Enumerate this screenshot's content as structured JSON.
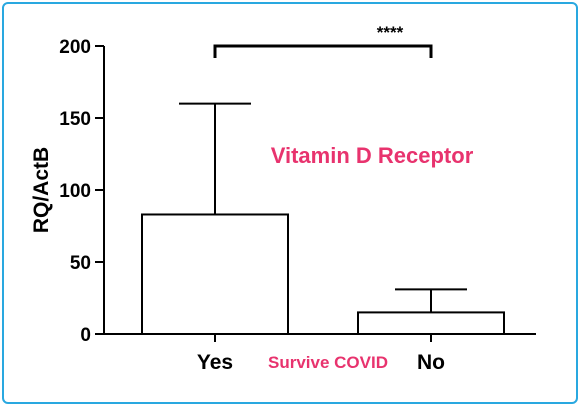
{
  "chart_data": {
    "type": "bar",
    "title": "",
    "ylabel": "RQ/ActB",
    "xlabel": "Survive COVID",
    "categories": [
      "Yes",
      "No"
    ],
    "values": [
      83,
      15
    ],
    "error_upper": [
      160,
      31
    ],
    "ylim": [
      0,
      200
    ],
    "yticks": [
      0,
      50,
      100,
      150,
      200
    ],
    "significance": {
      "text": "****",
      "between": [
        "Yes",
        "No"
      ],
      "y": 200
    },
    "annotation": "Vitamin D Receptor",
    "grid": false,
    "legend": "none"
  },
  "colors": {
    "accent": "#e8336e",
    "frame": "#29a8e0",
    "bar_fill": "#ffffff",
    "stroke": "#000000"
  }
}
